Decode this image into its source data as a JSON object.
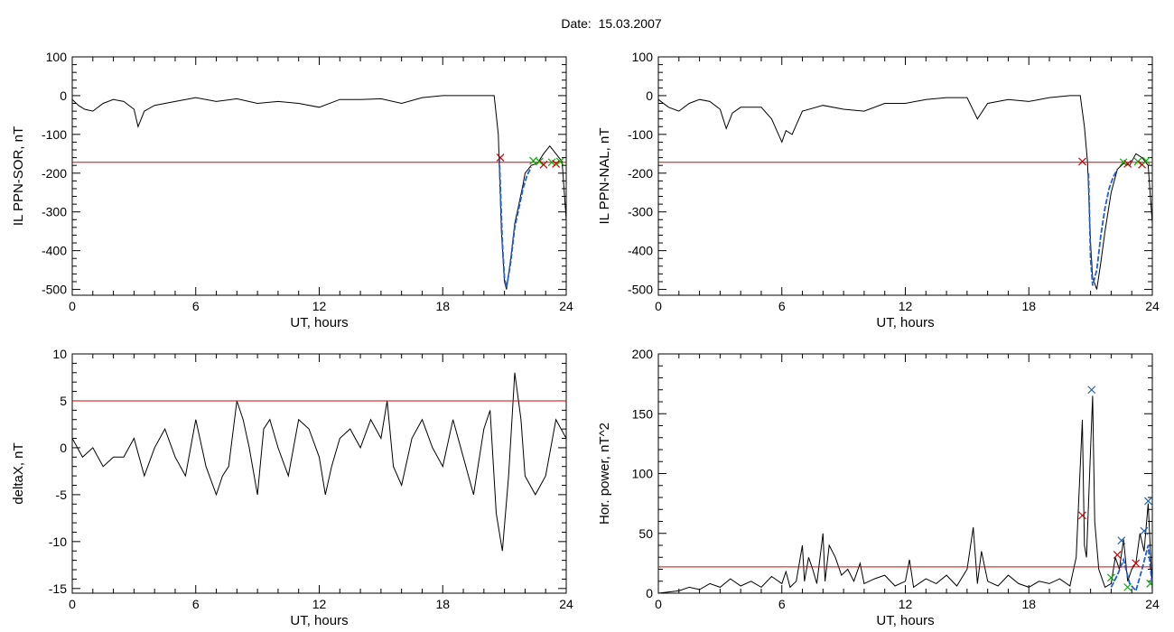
{
  "page": {
    "title": "Date:  15.03.2007"
  },
  "colors": {
    "trace": "#000000",
    "threshold": "#e00000",
    "highlight": "#1f5fd0",
    "marker_red": "#cc0000",
    "marker_green": "#00b000",
    "marker_blue": "#2060c0"
  },
  "chart_data": [
    {
      "type": "line",
      "panel": "top-left",
      "xlabel": "UT, hours",
      "ylabel": "IL PPN-SOR, nT",
      "xlim": [
        0,
        24
      ],
      "ylim": [
        -515,
        100
      ],
      "xticks": [
        0,
        6,
        12,
        18,
        24
      ],
      "yticks": [
        -500,
        -400,
        -300,
        -200,
        -100,
        0,
        100
      ],
      "threshold": -172,
      "series": [
        {
          "role": "trace",
          "x": [
            0,
            0.3,
            0.6,
            1,
            1.5,
            2,
            2.5,
            3,
            3.2,
            3.5,
            4,
            5,
            6,
            7,
            8,
            9,
            10,
            11,
            12,
            13,
            14,
            15,
            16,
            17,
            18,
            19,
            20,
            20.5,
            20.7,
            20.85,
            21,
            21.1,
            21.3,
            21.5,
            21.7,
            21.9,
            22,
            22.3,
            22.6,
            22.9,
            23.2,
            23.5,
            23.8,
            24
          ],
          "y": [
            -10,
            -25,
            -35,
            -40,
            -20,
            -10,
            -15,
            -35,
            -80,
            -40,
            -25,
            -15,
            -5,
            -15,
            -8,
            -20,
            -15,
            -20,
            -30,
            -10,
            -10,
            -8,
            -20,
            -5,
            0,
            0,
            0,
            0,
            -100,
            -350,
            -480,
            -500,
            -420,
            -330,
            -280,
            -230,
            -200,
            -180,
            -175,
            -150,
            -130,
            -150,
            -170,
            -320
          ]
        },
        {
          "role": "highlight",
          "x": [
            20.75,
            20.9,
            21,
            21.1,
            21.3,
            21.5,
            21.7,
            21.9,
            22.1,
            22.3
          ],
          "y": [
            -160,
            -380,
            -470,
            -495,
            -430,
            -340,
            -290,
            -240,
            -205,
            -185
          ]
        }
      ],
      "markers": [
        {
          "x": 20.8,
          "y": -160,
          "color": "red"
        },
        {
          "x": 22.4,
          "y": -168,
          "color": "green"
        },
        {
          "x": 22.7,
          "y": -170,
          "color": "green"
        },
        {
          "x": 22.9,
          "y": -178,
          "color": "red"
        },
        {
          "x": 23.3,
          "y": -172,
          "color": "green"
        },
        {
          "x": 23.5,
          "y": -176,
          "color": "red"
        },
        {
          "x": 23.7,
          "y": -170,
          "color": "green"
        }
      ]
    },
    {
      "type": "line",
      "panel": "top-right",
      "xlabel": "UT, hours",
      "ylabel": "IL PPN-NAL, nT",
      "xlim": [
        0,
        24
      ],
      "ylim": [
        -515,
        100
      ],
      "xticks": [
        0,
        6,
        12,
        18,
        24
      ],
      "yticks": [
        -500,
        -400,
        -300,
        -200,
        -100,
        0,
        100
      ],
      "threshold": -172,
      "series": [
        {
          "role": "trace",
          "x": [
            0,
            0.5,
            1,
            1.5,
            2,
            2.5,
            3,
            3.3,
            3.6,
            4,
            5,
            5.5,
            6,
            6.2,
            6.5,
            7,
            8,
            9,
            10,
            11,
            12,
            13,
            14,
            15,
            15.5,
            16,
            17,
            18,
            19,
            20,
            20.5,
            20.7,
            20.85,
            21,
            21.1,
            21.3,
            21.5,
            21.7,
            22,
            22.3,
            22.6,
            22.9,
            23.2,
            23.5,
            23.8,
            24
          ],
          "y": [
            -10,
            -30,
            -40,
            -20,
            -10,
            -15,
            -35,
            -85,
            -45,
            -30,
            -30,
            -60,
            -120,
            -90,
            -100,
            -40,
            -25,
            -35,
            -40,
            -20,
            -20,
            -10,
            -5,
            -5,
            -60,
            -20,
            -10,
            -15,
            -5,
            0,
            0,
            -80,
            -170,
            -380,
            -470,
            -500,
            -430,
            -350,
            -250,
            -190,
            -175,
            -180,
            -150,
            -160,
            -180,
            -330
          ]
        },
        {
          "role": "highlight",
          "x": [
            20.9,
            21,
            21.1,
            21.3,
            21.5,
            21.7,
            21.9,
            22.1,
            22.3
          ],
          "y": [
            -200,
            -420,
            -490,
            -450,
            -360,
            -290,
            -240,
            -210,
            -190
          ]
        }
      ],
      "markers": [
        {
          "x": 20.6,
          "y": -170,
          "color": "red"
        },
        {
          "x": 22.6,
          "y": -172,
          "color": "green"
        },
        {
          "x": 22.8,
          "y": -176,
          "color": "red"
        },
        {
          "x": 23.3,
          "y": -170,
          "color": "green"
        },
        {
          "x": 23.5,
          "y": -178,
          "color": "red"
        },
        {
          "x": 23.7,
          "y": -168,
          "color": "green"
        }
      ]
    },
    {
      "type": "line",
      "panel": "bottom-left",
      "xlabel": "UT, hours",
      "ylabel": "deltaX, nT",
      "xlim": [
        0,
        24
      ],
      "ylim": [
        -15.5,
        10
      ],
      "xticks": [
        0,
        6,
        12,
        18,
        24
      ],
      "yticks": [
        -15,
        -10,
        -5,
        0,
        5,
        10
      ],
      "threshold": 5,
      "series": [
        {
          "role": "trace",
          "x": [
            0,
            0.5,
            1,
            1.5,
            2,
            2.5,
            3,
            3.5,
            4,
            4.5,
            5,
            5.5,
            6,
            6.5,
            7,
            7.3,
            7.6,
            8,
            8.3,
            8.6,
            9,
            9.3,
            9.6,
            10,
            10.5,
            11,
            11.5,
            12,
            12.3,
            12.6,
            13,
            13.5,
            14,
            14.5,
            15,
            15.3,
            15.6,
            16,
            16.5,
            17,
            17.5,
            18,
            18.5,
            19,
            19.5,
            20,
            20.3,
            20.6,
            20.9,
            21.2,
            21.5,
            21.8,
            22,
            22.5,
            23,
            23.5,
            24
          ],
          "y": [
            1,
            -1,
            0,
            -2,
            -1,
            -1,
            1,
            -3,
            0,
            2,
            -1,
            -3,
            3,
            -2,
            -5,
            -3,
            -2,
            5,
            3,
            0,
            -5,
            2,
            3,
            0,
            -3,
            3,
            2,
            -1,
            -5,
            -2,
            1,
            2,
            0,
            3,
            1,
            5,
            -2,
            -4,
            1,
            3,
            0,
            -2,
            3,
            -1,
            -5,
            2,
            4,
            -7,
            -11,
            -3,
            8,
            3,
            -3,
            -5,
            -3,
            3,
            1
          ]
        }
      ],
      "markers": []
    },
    {
      "type": "line",
      "panel": "bottom-right",
      "xlabel": "UT, hours",
      "ylabel": "Hor. power, nT^2",
      "xlim": [
        0,
        24
      ],
      "ylim": [
        0,
        200
      ],
      "xticks": [
        0,
        6,
        12,
        18,
        24
      ],
      "yticks": [
        0,
        50,
        100,
        150,
        200
      ],
      "threshold": 22,
      "series": [
        {
          "role": "trace",
          "x": [
            0,
            1,
            1.5,
            2,
            2.5,
            3,
            3.5,
            4,
            4.5,
            5,
            5.5,
            6,
            6.2,
            6.4,
            6.7,
            7,
            7.1,
            7.3,
            7.5,
            7.7,
            8,
            8.1,
            8.3,
            8.6,
            8.9,
            9.2,
            9.5,
            9.8,
            10,
            10.5,
            11,
            11.5,
            12,
            12.2,
            12.4,
            13,
            13.5,
            14,
            14.5,
            15,
            15.3,
            15.5,
            15.7,
            16,
            16.5,
            17,
            17.5,
            18,
            18.5,
            19,
            19.5,
            20,
            20.3,
            20.6,
            20.7,
            20.8,
            21,
            21.1,
            21.2,
            21.4,
            21.7,
            22,
            22.2,
            22.4,
            22.6,
            22.8,
            23,
            23.2,
            23.4,
            23.6,
            23.8,
            24
          ],
          "y": [
            0,
            2,
            5,
            3,
            8,
            5,
            12,
            6,
            10,
            5,
            14,
            8,
            18,
            5,
            10,
            40,
            10,
            30,
            20,
            8,
            50,
            10,
            40,
            30,
            15,
            20,
            10,
            25,
            8,
            12,
            15,
            6,
            10,
            28,
            5,
            12,
            8,
            15,
            6,
            20,
            55,
            8,
            35,
            10,
            6,
            15,
            8,
            5,
            10,
            8,
            12,
            6,
            30,
            145,
            40,
            30,
            120,
            165,
            60,
            20,
            5,
            8,
            30,
            20,
            45,
            10,
            20,
            25,
            50,
            35,
            75,
            2
          ]
        },
        {
          "role": "highlight",
          "x": [
            22,
            22.3,
            22.6,
            22.9,
            23.2,
            23.5,
            23.8,
            24
          ],
          "y": [
            5,
            15,
            28,
            8,
            2,
            20,
            40,
            5
          ]
        }
      ],
      "markers": [
        {
          "x": 20.6,
          "y": 65,
          "color": "red"
        },
        {
          "x": 21.05,
          "y": 170,
          "color": "blue"
        },
        {
          "x": 22.3,
          "y": 32,
          "color": "red"
        },
        {
          "x": 22.5,
          "y": 44,
          "color": "blue"
        },
        {
          "x": 22.0,
          "y": 13,
          "color": "green"
        },
        {
          "x": 22.8,
          "y": 5,
          "color": "green"
        },
        {
          "x": 23.2,
          "y": 25,
          "color": "red"
        },
        {
          "x": 23.6,
          "y": 52,
          "color": "blue"
        },
        {
          "x": 23.8,
          "y": 77,
          "color": "blue"
        },
        {
          "x": 23.9,
          "y": 8,
          "color": "green"
        }
      ]
    }
  ]
}
